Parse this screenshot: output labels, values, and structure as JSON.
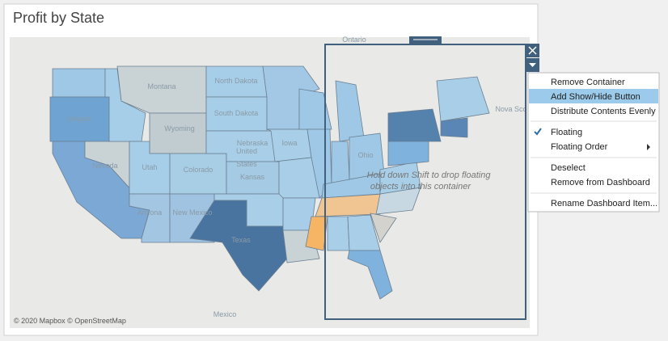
{
  "header": {
    "title": "Profit by State"
  },
  "map": {
    "place_labels": [
      "Ontario",
      "United",
      "States",
      "Mexico",
      "Nova Sco"
    ],
    "state_labels": [
      "Montana",
      "North Dakota",
      "South Dakota",
      "Wyoming",
      "Nebraska",
      "Colorado",
      "Kansas",
      "Nevada",
      "Utah",
      "Oregon",
      "Arizona",
      "New Mexico",
      "Texas",
      "Iowa",
      "Ohio"
    ],
    "attribution": "© 2020 Mapbox © OpenStreetMap"
  },
  "container": {
    "drop_hint_line1": "Hold down Shift to drop floating",
    "drop_hint_line2": "objects into this container"
  },
  "context_menu": {
    "items": [
      "Remove Container",
      "Add Show/Hide Button",
      "Distribute Contents Evenly",
      "Floating",
      "Floating Order",
      "Deselect",
      "Remove from Dashboard",
      "Rename Dashboard Item..."
    ],
    "highlighted": 1,
    "checked": 3
  }
}
